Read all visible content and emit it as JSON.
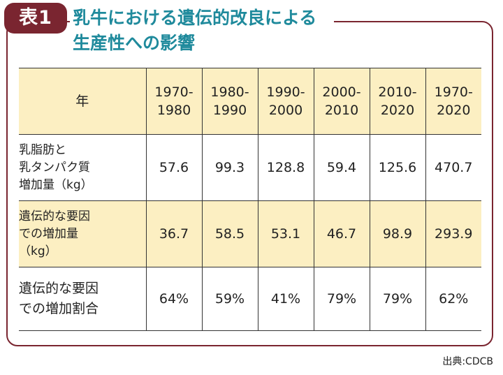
{
  "badge": "表1",
  "title": {
    "line1": "乳牛における遺伝的改良による",
    "line2": "生産性への影響"
  },
  "table": {
    "corner": "年",
    "periods": [
      "1970-\n1980",
      "1980-\n1990",
      "1990-\n2000",
      "2000-\n2010",
      "2010-\n2020",
      "1970-\n2020"
    ],
    "rows": [
      {
        "label": "乳脂肪と\n乳タンパク質\n増加量（kg）",
        "values": [
          "57.6",
          "99.3",
          "128.8",
          "59.4",
          "125.6",
          "470.7"
        ]
      },
      {
        "label": "遺伝的な要因\nでの増加量\n（kg）",
        "values": [
          "36.7",
          "58.5",
          "53.1",
          "46.7",
          "98.9",
          "293.9"
        ]
      },
      {
        "label": "遺伝的な要因\nでの増加割合",
        "values": [
          "64%",
          "59%",
          "41%",
          "79%",
          "79%",
          "62%"
        ]
      }
    ]
  },
  "source": "出典:CDCB",
  "colors": {
    "frame": "#7a2530",
    "title": "#1f8a9c",
    "highlight": "#fcefc2"
  }
}
